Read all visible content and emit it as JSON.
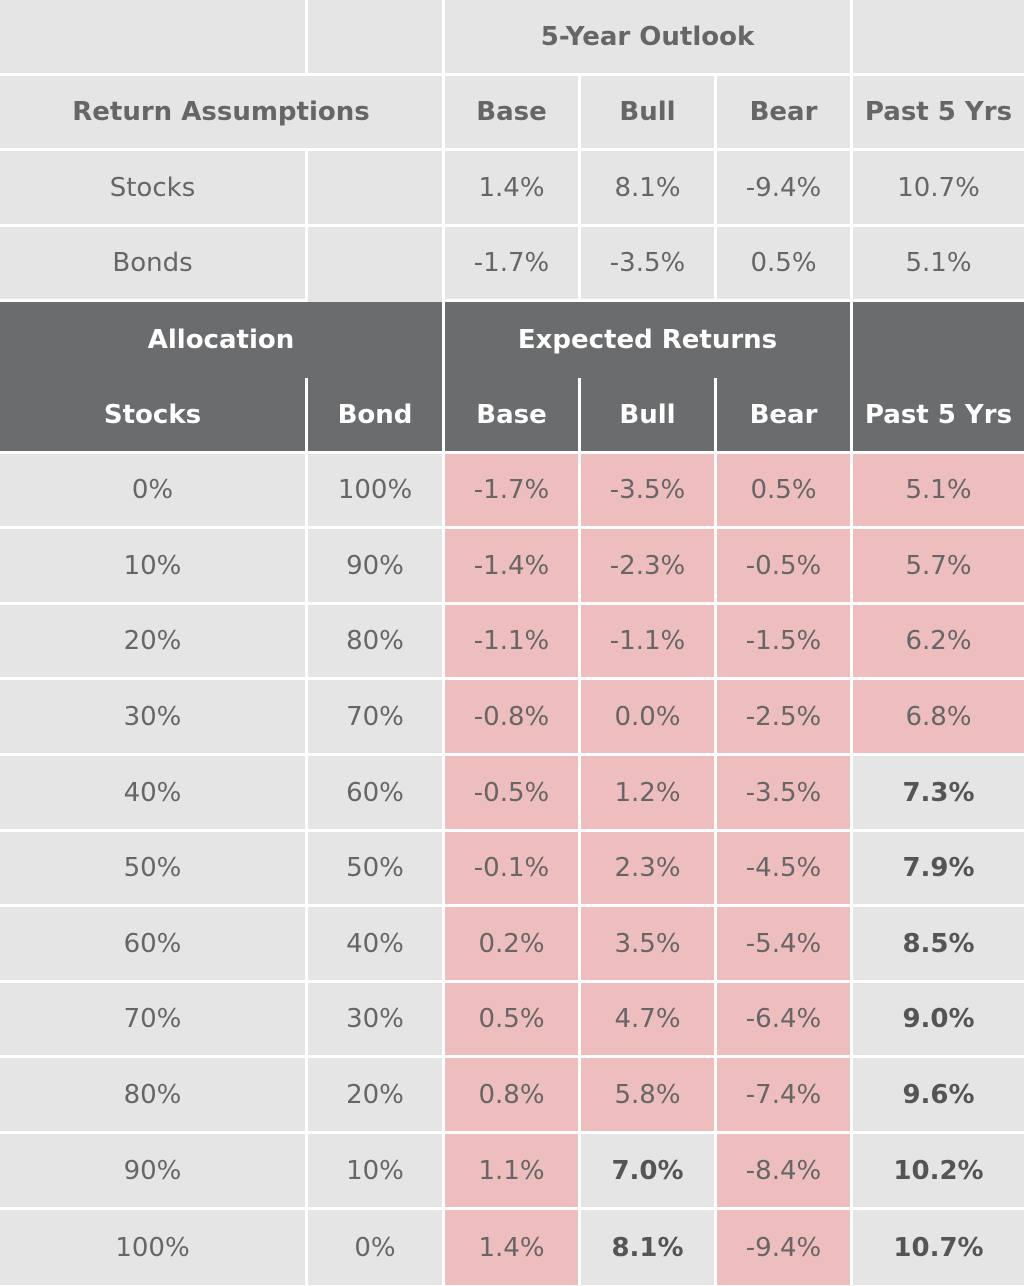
{
  "chart_data": {
    "type": "table",
    "outlook_title": "5-Year Outlook",
    "assumptions_header": {
      "label": "Return Assumptions",
      "columns": [
        "Base",
        "Bull",
        "Bear",
        "Past 5 Yrs"
      ]
    },
    "assumptions": [
      {
        "asset": "Stocks",
        "values": [
          "1.4%",
          "8.1%",
          "-9.4%",
          "10.7%"
        ]
      },
      {
        "asset": "Bonds",
        "values": [
          "-1.7%",
          "-3.5%",
          "0.5%",
          "5.1%"
        ]
      }
    ],
    "section_header": {
      "allocation": "Allocation",
      "expected_returns": "Expected Returns",
      "columns": [
        "Stocks",
        "Bond",
        "Base",
        "Bull",
        "Bear",
        "Past 5 Yrs"
      ]
    },
    "rows": [
      {
        "stocks": "0%",
        "bond": "100%",
        "values": [
          "-1.7%",
          "-3.5%",
          "0.5%",
          "5.1%"
        ],
        "bold": [
          false,
          false,
          false,
          false
        ]
      },
      {
        "stocks": "10%",
        "bond": "90%",
        "values": [
          "-1.4%",
          "-2.3%",
          "-0.5%",
          "5.7%"
        ],
        "bold": [
          false,
          false,
          false,
          false
        ]
      },
      {
        "stocks": "20%",
        "bond": "80%",
        "values": [
          "-1.1%",
          "-1.1%",
          "-1.5%",
          "6.2%"
        ],
        "bold": [
          false,
          false,
          false,
          false
        ]
      },
      {
        "stocks": "30%",
        "bond": "70%",
        "values": [
          "-0.8%",
          "0.0%",
          "-2.5%",
          "6.8%"
        ],
        "bold": [
          false,
          false,
          false,
          false
        ]
      },
      {
        "stocks": "40%",
        "bond": "60%",
        "values": [
          "-0.5%",
          "1.2%",
          "-3.5%",
          "7.3%"
        ],
        "bold": [
          false,
          false,
          false,
          true
        ]
      },
      {
        "stocks": "50%",
        "bond": "50%",
        "values": [
          "-0.1%",
          "2.3%",
          "-4.5%",
          "7.9%"
        ],
        "bold": [
          false,
          false,
          false,
          true
        ]
      },
      {
        "stocks": "60%",
        "bond": "40%",
        "values": [
          "0.2%",
          "3.5%",
          "-5.4%",
          "8.5%"
        ],
        "bold": [
          false,
          false,
          false,
          true
        ]
      },
      {
        "stocks": "70%",
        "bond": "30%",
        "values": [
          "0.5%",
          "4.7%",
          "-6.4%",
          "9.0%"
        ],
        "bold": [
          false,
          false,
          false,
          true
        ]
      },
      {
        "stocks": "80%",
        "bond": "20%",
        "values": [
          "0.8%",
          "5.8%",
          "-7.4%",
          "9.6%"
        ],
        "bold": [
          false,
          false,
          false,
          true
        ]
      },
      {
        "stocks": "90%",
        "bond": "10%",
        "values": [
          "1.1%",
          "7.0%",
          "-8.4%",
          "10.2%"
        ],
        "bold": [
          false,
          true,
          false,
          true
        ]
      },
      {
        "stocks": "100%",
        "bond": "0%",
        "values": [
          "1.4%",
          "8.1%",
          "-9.4%",
          "10.7%"
        ],
        "bold": [
          false,
          true,
          false,
          true
        ]
      }
    ],
    "colors": {
      "light_cell": "#e5e5e5",
      "highlight_cell": "#eebebe",
      "header_dark": "#6b6c6e",
      "text": "#666666",
      "header_text": "#ffffff"
    }
  }
}
